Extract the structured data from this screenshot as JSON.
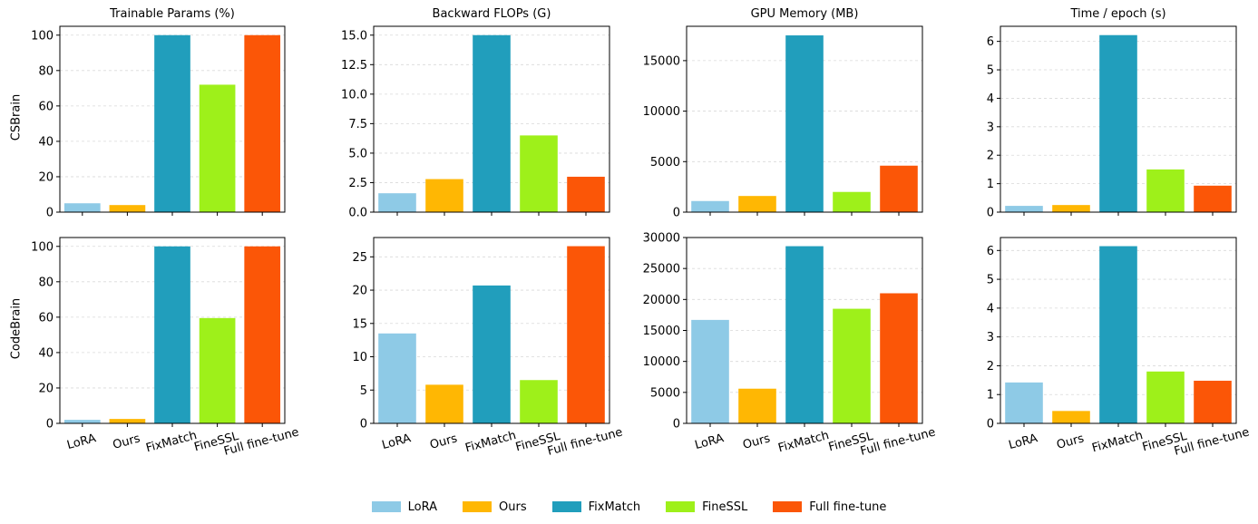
{
  "methods": [
    "LoRA",
    "Ours",
    "FixMatch",
    "FineSSL",
    "Full fine-tune"
  ],
  "colors": {
    "LoRA": "#8ecae6",
    "Ours": "#ffb703",
    "FixMatch": "#219ebc",
    "FineSSL": "#9ef01a",
    "Full fine-tune": "#fb5607"
  },
  "column_titles": [
    "Trainable Params (%)",
    "Backward FLOPs (G)",
    "GPU Memory (MB)",
    "Time / epoch (s)"
  ],
  "row_labels": [
    "CSBrain",
    "CodeBrain"
  ],
  "legend": {
    "items": [
      "LoRA",
      "Ours",
      "FixMatch",
      "FineSSL",
      "Full fine-tune"
    ],
    "position": "bottom-center"
  },
  "chart_data": [
    {
      "type": "bar",
      "row": "CSBrain",
      "title": "Trainable Params (%)",
      "categories": [
        "LoRA",
        "Ours",
        "FixMatch",
        "FineSSL",
        "Full fine-tune"
      ],
      "values": [
        5,
        4,
        100,
        72,
        100
      ],
      "ylim": [
        0,
        105
      ],
      "yticks": [
        0,
        20,
        40,
        60,
        80,
        100
      ],
      "ytick_labels": [
        "0",
        "20",
        "40",
        "60",
        "80",
        "100"
      ],
      "grid": true,
      "xticklabels_shown": false
    },
    {
      "type": "bar",
      "row": "CSBrain",
      "title": "Backward FLOPs (G)",
      "categories": [
        "LoRA",
        "Ours",
        "FixMatch",
        "FineSSL",
        "Full fine-tune"
      ],
      "values": [
        1.6,
        2.8,
        15.0,
        6.5,
        3.0
      ],
      "ylim": [
        0,
        15.75
      ],
      "yticks": [
        0,
        2.5,
        5,
        7.5,
        10,
        12.5,
        15
      ],
      "ytick_labels": [
        "0.0",
        "2.5",
        "5.0",
        "7.5",
        "10.0",
        "12.5",
        "15.0"
      ],
      "grid": true,
      "xticklabels_shown": false
    },
    {
      "type": "bar",
      "row": "CSBrain",
      "title": "GPU Memory (MB)",
      "categories": [
        "LoRA",
        "Ours",
        "FixMatch",
        "FineSSL",
        "Full fine-tune"
      ],
      "values": [
        1100,
        1600,
        17500,
        2000,
        4600
      ],
      "ylim": [
        0,
        18400
      ],
      "yticks": [
        0,
        5000,
        10000,
        15000
      ],
      "ytick_labels": [
        "0",
        "5000",
        "10000",
        "15000"
      ],
      "grid": true,
      "xticklabels_shown": false
    },
    {
      "type": "bar",
      "row": "CSBrain",
      "title": "Time / epoch (s)",
      "categories": [
        "LoRA",
        "Ours",
        "FixMatch",
        "FineSSL",
        "Full fine-tune"
      ],
      "values": [
        0.22,
        0.25,
        6.22,
        1.5,
        0.93
      ],
      "ylim": [
        0,
        6.53
      ],
      "yticks": [
        0,
        1,
        2,
        3,
        4,
        5,
        6
      ],
      "ytick_labels": [
        "0",
        "1",
        "2",
        "3",
        "4",
        "5",
        "6"
      ],
      "grid": true,
      "xticklabels_shown": false
    },
    {
      "type": "bar",
      "row": "CodeBrain",
      "title": "Trainable Params (%)",
      "categories": [
        "LoRA",
        "Ours",
        "FixMatch",
        "FineSSL",
        "Full fine-tune"
      ],
      "values": [
        2,
        2.5,
        100,
        59.5,
        100
      ],
      "ylim": [
        0,
        105
      ],
      "yticks": [
        0,
        20,
        40,
        60,
        80,
        100
      ],
      "ytick_labels": [
        "0",
        "20",
        "40",
        "60",
        "80",
        "100"
      ],
      "grid": true,
      "xticklabels_shown": true
    },
    {
      "type": "bar",
      "row": "CodeBrain",
      "title": "Backward FLOPs (G)",
      "categories": [
        "LoRA",
        "Ours",
        "FixMatch",
        "FineSSL",
        "Full fine-tune"
      ],
      "values": [
        13.5,
        5.8,
        20.7,
        6.5,
        26.6
      ],
      "ylim": [
        0,
        27.9
      ],
      "yticks": [
        0,
        5,
        10,
        15,
        20,
        25
      ],
      "ytick_labels": [
        "0",
        "5",
        "10",
        "15",
        "20",
        "25"
      ],
      "grid": true,
      "xticklabels_shown": true
    },
    {
      "type": "bar",
      "row": "CodeBrain",
      "title": "GPU Memory (MB)",
      "categories": [
        "LoRA",
        "Ours",
        "FixMatch",
        "FineSSL",
        "Full fine-tune"
      ],
      "values": [
        16700,
        5600,
        28600,
        18500,
        21000
      ],
      "ylim": [
        0,
        30000
      ],
      "yticks": [
        0,
        5000,
        10000,
        15000,
        20000,
        25000,
        30000
      ],
      "ytick_labels": [
        "0",
        "5000",
        "10000",
        "15000",
        "20000",
        "25000",
        "30000"
      ],
      "grid": true,
      "xticklabels_shown": true
    },
    {
      "type": "bar",
      "row": "CodeBrain",
      "title": "Time / epoch (s)",
      "categories": [
        "LoRA",
        "Ours",
        "FixMatch",
        "FineSSL",
        "Full fine-tune"
      ],
      "values": [
        1.42,
        0.43,
        6.15,
        1.8,
        1.48
      ],
      "ylim": [
        0,
        6.45
      ],
      "yticks": [
        0,
        1,
        2,
        3,
        4,
        5,
        6
      ],
      "ytick_labels": [
        "0",
        "1",
        "2",
        "3",
        "4",
        "5",
        "6"
      ],
      "grid": true,
      "xticklabels_shown": true
    }
  ]
}
